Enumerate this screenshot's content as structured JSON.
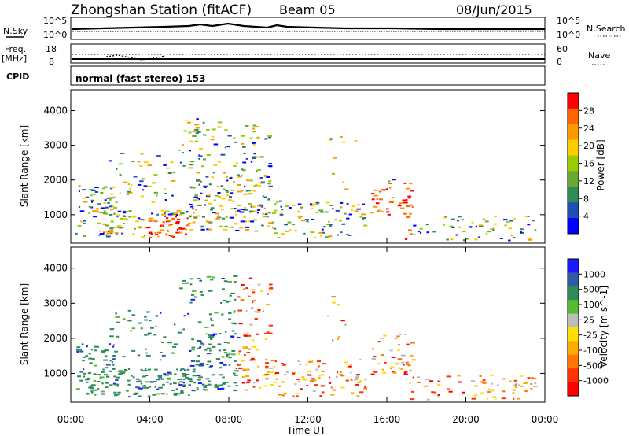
{
  "header": {
    "station": "Zhongshan Station (fitACF)",
    "beam": "Beam 05",
    "date": "08/Jun/2015"
  },
  "strips": {
    "nsky_label": "N.Sky",
    "nsearch_label": "N.Search",
    "left_ticks_top": [
      "10^5",
      "10^0"
    ],
    "right_ticks_top": [
      "10^5",
      "10^0"
    ],
    "freq_label": "Freq.",
    "freq_unit": "[MHz]",
    "freq_ticks": [
      "18",
      "8"
    ],
    "nave_label": "Nave",
    "nave_ticks": [
      "60",
      "0"
    ],
    "cpid_label": "CPID",
    "cpid_text": "normal (fast stereo) 153"
  },
  "colors": {
    "power": [
      "#0000ff",
      "#1e50b4",
      "#2e8b57",
      "#66aa33",
      "#99cc00",
      "#ffcc00",
      "#ff9900",
      "#ff6600",
      "#ff0000"
    ],
    "velocity": [
      "#1a1aff",
      "#2e5aa8",
      "#2e8b57",
      "#55bb33",
      "#bbbbbb",
      "#ffdd00",
      "#ffaa00",
      "#ff7700",
      "#ff3300",
      "#ff0000"
    ]
  },
  "chart_data": [
    {
      "type": "heatmap",
      "title": "",
      "xlabel": "Time UT",
      "ylabel": "Slant Range [km]",
      "xlim": [
        "00:00",
        "24:00"
      ],
      "ylim": [
        180,
        4600
      ],
      "x_ticks": [
        "00:00",
        "04:00",
        "08:00",
        "12:00",
        "16:00",
        "20:00",
        "00:00"
      ],
      "y_ticks": [
        "1000",
        "2000",
        "3000",
        "4000"
      ],
      "colorbar": {
        "label": "Power [dB]",
        "ticks": [
          "4",
          "8",
          "12",
          "16",
          "20",
          "24",
          "28"
        ],
        "range": [
          0,
          30
        ]
      }
    },
    {
      "type": "heatmap",
      "title": "",
      "xlabel": "Time UT",
      "ylabel": "Slant Range [km]",
      "xlim": [
        "00:00",
        "24:00"
      ],
      "ylim": [
        180,
        4600
      ],
      "x_ticks": [
        "00:00",
        "04:00",
        "08:00",
        "12:00",
        "16:00",
        "20:00",
        "00:00"
      ],
      "y_ticks": [
        "1000",
        "2000",
        "3000",
        "4000"
      ],
      "colorbar": {
        "label": "Velocity [m s^-1]",
        "ticks": [
          "1000",
          "500",
          "100",
          "25",
          "-25",
          "-100",
          "-500",
          "-1000"
        ]
      }
    }
  ]
}
